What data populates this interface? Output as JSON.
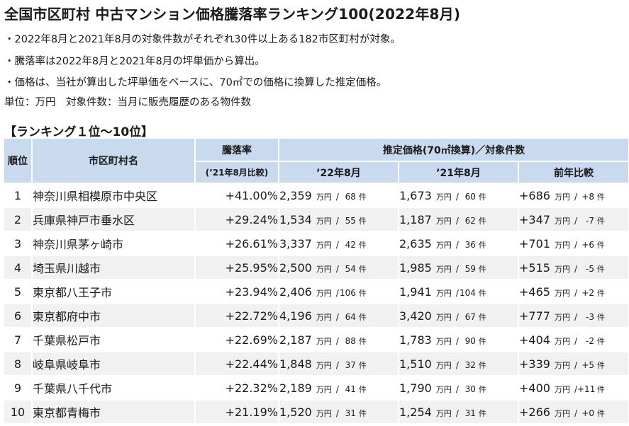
{
  "title": "全国市区町村 中古マンション価格騰落率ランキング100(2022年8月)",
  "notes": [
    "・2022年8月と2021年8月の対象件数がそれぞれ30件以上ある182市区町村が対象。",
    "・騰落率は2022年8月と2021年8月の坪単価から算出。",
    "・価格は、当社が算出した坪単価をベースに、70㎡での価格に換算した推定価格。",
    "単位：万円　対象件数：当月に販売履歴のある物件数"
  ],
  "section_title": "【ランキング１位～10位】",
  "headers": {
    "rank": "順位",
    "name": "市区町村名",
    "rate": "騰落率",
    "rate_sub": "(’21年8月比較)",
    "group": "推定価格(70㎡換算)／対象件数",
    "y2022": "’22年8月",
    "y2021": "’21年8月",
    "yoy": "前年比較"
  },
  "units": {
    "price": "万円",
    "count": "件",
    "sep": "/"
  },
  "rows": [
    {
      "rank": "1",
      "name": "神奈川県相模原市中央区",
      "rate": "+41.00%",
      "p22": "2,359",
      "c22": "68",
      "p21": "1,673",
      "c21": "60",
      "dp": "+686",
      "dc": "+8"
    },
    {
      "rank": "2",
      "name": "兵庫県神戸市垂水区",
      "rate": "+29.24%",
      "p22": "1,534",
      "c22": "55",
      "p21": "1,187",
      "c21": "62",
      "dp": "+347",
      "dc": "-7"
    },
    {
      "rank": "3",
      "name": "神奈川県茅ヶ崎市",
      "rate": "+26.61%",
      "p22": "3,337",
      "c22": "42",
      "p21": "2,635",
      "c21": "36",
      "dp": "+701",
      "dc": "+6"
    },
    {
      "rank": "4",
      "name": "埼玉県川越市",
      "rate": "+25.95%",
      "p22": "2,500",
      "c22": "54",
      "p21": "1,985",
      "c21": "59",
      "dp": "+515",
      "dc": "-5"
    },
    {
      "rank": "5",
      "name": "東京都八王子市",
      "rate": "+23.94%",
      "p22": "2,406",
      "c22": "106",
      "p21": "1,941",
      "c21": "104",
      "dp": "+465",
      "dc": "+2"
    },
    {
      "rank": "6",
      "name": "東京都府中市",
      "rate": "+22.72%",
      "p22": "4,196",
      "c22": "64",
      "p21": "3,420",
      "c21": "67",
      "dp": "+777",
      "dc": "-3"
    },
    {
      "rank": "7",
      "name": "千葉県松戸市",
      "rate": "+22.69%",
      "p22": "2,187",
      "c22": "88",
      "p21": "1,783",
      "c21": "90",
      "dp": "+404",
      "dc": "-2"
    },
    {
      "rank": "8",
      "name": "岐阜県岐阜市",
      "rate": "+22.44%",
      "p22": "1,848",
      "c22": "37",
      "p21": "1,510",
      "c21": "32",
      "dp": "+339",
      "dc": "+5"
    },
    {
      "rank": "9",
      "name": "千葉県八千代市",
      "rate": "+22.32%",
      "p22": "2,189",
      "c22": "41",
      "p21": "1,790",
      "c21": "30",
      "dp": "+400",
      "dc": "+11"
    },
    {
      "rank": "10",
      "name": "東京都青梅市",
      "rate": "+21.19%",
      "p22": "1,520",
      "c22": "31",
      "p21": "1,254",
      "c21": "31",
      "dp": "+266",
      "dc": "+0"
    }
  ]
}
